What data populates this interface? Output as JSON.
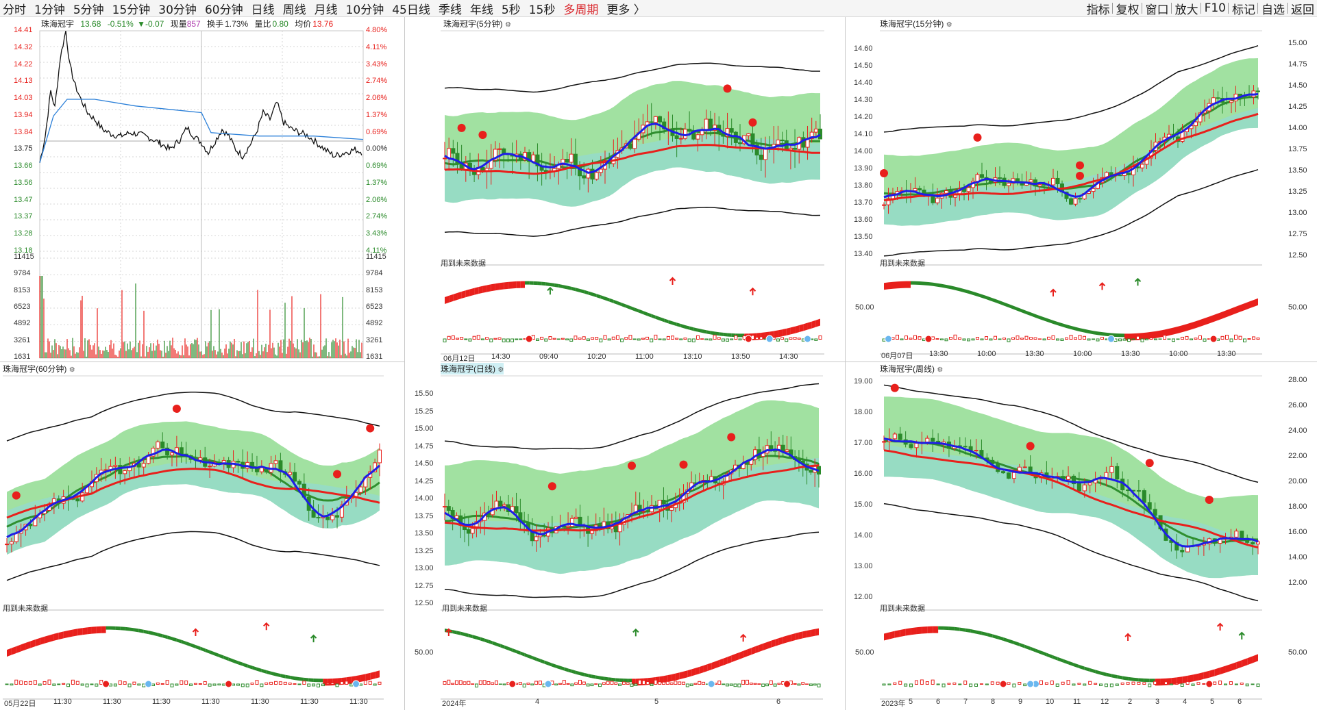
{
  "toolbar": {
    "periods": [
      "分时",
      "1分钟",
      "5分钟",
      "15分钟",
      "30分钟",
      "60分钟",
      "日线",
      "周线",
      "月线",
      "10分钟",
      "45日线",
      "季线",
      "年线",
      "5秒",
      "15秒",
      "多周期",
      "更多 〉"
    ],
    "active_period": "多周期",
    "right_menu": [
      "指标",
      "复权",
      "窗口",
      "放大",
      "F10",
      "标记",
      "自选",
      "返回"
    ]
  },
  "colors": {
    "up": "#e8201c",
    "down": "#2a8a2a",
    "ma_blue": "#1e1ee6",
    "ma_red": "#e8201c",
    "band_green": "#6fd16f",
    "band_cyan": "#8fd8e0",
    "grid": "#d6d6d6"
  },
  "intraday": {
    "name": "珠海冠宇",
    "price": "13.68",
    "change_pct": "-0.51%",
    "change": "▼-0.07",
    "volume_label": "现量",
    "volume": "857",
    "turnover_label": "换手",
    "turnover": "1.73%",
    "ratio_label": "量比",
    "ratio": "0.80",
    "avg_label": "均价",
    "avg": "13.76",
    "price_ticks": [
      "14.41",
      "14.32",
      "14.22",
      "14.13",
      "14.03",
      "13.94",
      "13.84",
      "13.75",
      "13.66",
      "13.56",
      "13.47",
      "13.37",
      "13.28",
      "13.18"
    ],
    "pct_ticks": [
      "4.80%",
      "4.11%",
      "3.43%",
      "2.74%",
      "2.06%",
      "1.37%",
      "0.69%",
      "0.00%",
      "0.69%",
      "1.37%",
      "2.06%",
      "2.74%",
      "3.43%",
      "4.11%"
    ],
    "vol_ticks": [
      "11415",
      "9784",
      "8153",
      "6523",
      "4892",
      "3261",
      "1631"
    ]
  },
  "panels": [
    {
      "id": "p5",
      "title": "珠海冠宇(5分钟)",
      "note": "用到未来数据",
      "xlabels": [
        "06月12日",
        "14:30",
        "09:40",
        "10:20",
        "11:00",
        "13:10",
        "13:50",
        "14:30"
      ]
    },
    {
      "id": "p15",
      "title": "珠海冠宇(15分钟)",
      "note": "用到未来数据",
      "yticks": [
        "14.60",
        "14.50",
        "14.40",
        "14.30",
        "14.20",
        "14.10",
        "14.00",
        "13.90",
        "13.80",
        "13.70",
        "13.60",
        "13.50",
        "13.40"
      ],
      "right_ticks": [
        "15.00",
        "14.75",
        "14.50",
        "14.25",
        "14.00",
        "13.75",
        "13.50",
        "13.25",
        "13.00",
        "12.75",
        "12.50"
      ],
      "osc_tick": "50.00",
      "right_osc_tick": "50.00",
      "xlabels": [
        "06月07日",
        "13:30",
        "10:00",
        "13:30",
        "10:00",
        "13:30",
        "10:00",
        "13:30"
      ]
    },
    {
      "id": "p60",
      "title": "珠海冠宇(60分钟)",
      "note": "用到未来数据",
      "xlabels": [
        "05月22日",
        "11:30",
        "11:30",
        "11:30",
        "11:30",
        "11:30",
        "11:30",
        "11:30"
      ]
    },
    {
      "id": "pday",
      "title": "珠海冠宇(日线)",
      "note": "用到未来数据",
      "yticks": [
        "15.50",
        "15.25",
        "15.00",
        "14.75",
        "14.50",
        "14.25",
        "14.00",
        "13.75",
        "13.50",
        "13.25",
        "13.00",
        "12.75",
        "12.50"
      ],
      "osc_tick": "50.00",
      "xlabels": [
        "2024年",
        "4",
        "5",
        "6"
      ]
    },
    {
      "id": "pweek",
      "title": "珠海冠宇(周线)",
      "note": "用到未来数据",
      "yticks": [
        "19.00",
        "18.00",
        "17.00",
        "16.00",
        "15.00",
        "14.00",
        "13.00",
        "12.00"
      ],
      "right_ticks": [
        "28.00",
        "26.00",
        "24.00",
        "22.00",
        "20.00",
        "18.00",
        "16.00",
        "14.00",
        "12.00"
      ],
      "osc_tick": "50.00",
      "right_osc_tick": "50.00",
      "xlabels": [
        "2023年",
        "5",
        "6",
        "7",
        "8",
        "9",
        "10",
        "11",
        "12",
        "2",
        "3",
        "4",
        "5",
        "6"
      ]
    }
  ]
}
